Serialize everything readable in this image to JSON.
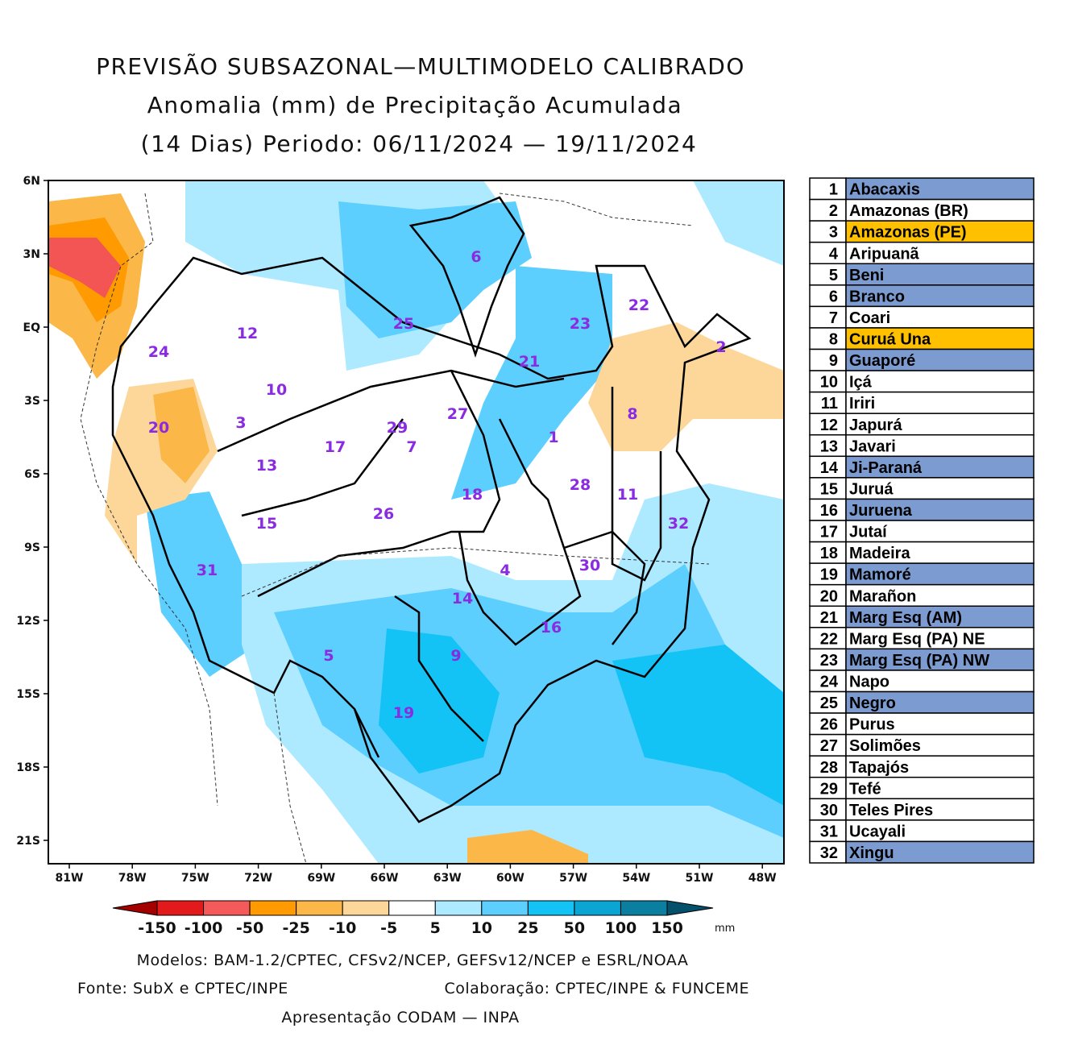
{
  "title": [
    "PREVISÃO SUBSAZONAL—MULTIMODELO CALIBRADO",
    "Anomalia (mm) de Precipitação Acumulada",
    "(14 Dias) Periodo: 06/11/2024 — 19/11/2024"
  ],
  "lat_labels": [
    "6N",
    "3N",
    "EQ",
    "3S",
    "6S",
    "9S",
    "12S",
    "15S",
    "18S",
    "21S"
  ],
  "lon_labels": [
    "81W",
    "78W",
    "75W",
    "72W",
    "69W",
    "66W",
    "63W",
    "60W",
    "57W",
    "54W",
    "51W",
    "48W"
  ],
  "basin_labels": [
    6,
    25,
    23,
    22,
    12,
    24,
    21,
    2,
    10,
    3,
    27,
    20,
    29,
    8,
    1,
    7,
    17,
    13,
    26,
    18,
    28,
    11,
    15,
    32,
    31,
    4,
    30,
    14,
    16,
    5,
    9,
    19
  ],
  "colorbar": {
    "ticks": [
      -150,
      -100,
      -50,
      -25,
      -10,
      -5,
      5,
      10,
      25,
      50,
      100,
      150
    ],
    "unit": "mm",
    "colors": [
      "#a50000",
      "#e31a1c",
      "#f55a5a",
      "#ff9a00",
      "#fbb848",
      "#fdd79a",
      "#ffffff",
      "#aeeaff",
      "#5ccfff",
      "#14c3f5",
      "#0aa5d2",
      "#0a7fa0",
      "#05506a"
    ]
  },
  "footer": {
    "models": "Modelos: BAM-1.2/CPTEC, CFSv2/NCEP, GEFSv12/NCEP e ESRL/NOAA",
    "source": "Fonte: SubX e CPTEC/INPE",
    "collaboration": "Colaboração: CPTEC/INPE & FUNCEME",
    "presentation": "Apresentação CODAM — INPA"
  },
  "legend": [
    {
      "number": 1,
      "name": "Abacaxis",
      "color": "#7b9bd1"
    },
    {
      "number": 2,
      "name": "Amazonas (BR)",
      "color": "#ffffff"
    },
    {
      "number": 3,
      "name": "Amazonas (PE)",
      "color": "#ffc000"
    },
    {
      "number": 4,
      "name": "Aripuanã",
      "color": "#ffffff"
    },
    {
      "number": 5,
      "name": "Beni",
      "color": "#7b9bd1"
    },
    {
      "number": 6,
      "name": "Branco",
      "color": "#7b9bd1"
    },
    {
      "number": 7,
      "name": "Coari",
      "color": "#ffffff"
    },
    {
      "number": 8,
      "name": "Curuá Una",
      "color": "#ffc000"
    },
    {
      "number": 9,
      "name": "Guaporé",
      "color": "#7b9bd1"
    },
    {
      "number": 10,
      "name": "Içá",
      "color": "#ffffff"
    },
    {
      "number": 11,
      "name": "Iriri",
      "color": "#ffffff"
    },
    {
      "number": 12,
      "name": "Japurá",
      "color": "#ffffff"
    },
    {
      "number": 13,
      "name": "Javari",
      "color": "#ffffff"
    },
    {
      "number": 14,
      "name": "Ji-Paraná",
      "color": "#7b9bd1"
    },
    {
      "number": 15,
      "name": "Juruá",
      "color": "#ffffff"
    },
    {
      "number": 16,
      "name": "Juruena",
      "color": "#7b9bd1"
    },
    {
      "number": 17,
      "name": "Jutaí",
      "color": "#ffffff"
    },
    {
      "number": 18,
      "name": "Madeira",
      "color": "#ffffff"
    },
    {
      "number": 19,
      "name": "Mamoré",
      "color": "#7b9bd1"
    },
    {
      "number": 20,
      "name": "Marañon",
      "color": "#ffffff"
    },
    {
      "number": 21,
      "name": "Marg Esq (AM)",
      "color": "#7b9bd1"
    },
    {
      "number": 22,
      "name": "Marg Esq (PA) NE",
      "color": "#ffffff"
    },
    {
      "number": 23,
      "name": "Marg Esq (PA) NW",
      "color": "#7b9bd1"
    },
    {
      "number": 24,
      "name": "Napo",
      "color": "#ffffff"
    },
    {
      "number": 25,
      "name": "Negro",
      "color": "#7b9bd1"
    },
    {
      "number": 26,
      "name": "Purus",
      "color": "#ffffff"
    },
    {
      "number": 27,
      "name": "Solimões",
      "color": "#ffffff"
    },
    {
      "number": 28,
      "name": "Tapajós",
      "color": "#ffffff"
    },
    {
      "number": 29,
      "name": "Tefé",
      "color": "#ffffff"
    },
    {
      "number": 30,
      "name": "Teles Pires",
      "color": "#ffffff"
    },
    {
      "number": 31,
      "name": "Ucayali",
      "color": "#ffffff"
    },
    {
      "number": 32,
      "name": "Xingu",
      "color": "#7b9bd1"
    }
  ]
}
